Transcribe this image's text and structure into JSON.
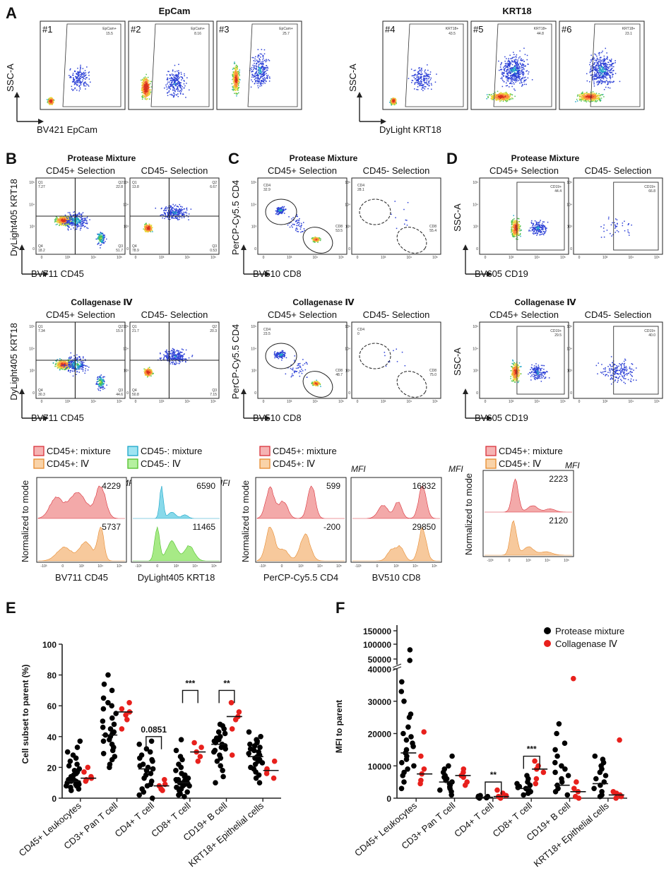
{
  "panels": {
    "A": {
      "label": "A",
      "groups": [
        {
          "title": "EpCam",
          "ylabel": "SSC-A",
          "xlabel": "BV421 EpCam",
          "plots": [
            {
              "id": "#1",
              "gate": "EpCam+",
              "pct": "15.5",
              "dist": "low"
            },
            {
              "id": "#2",
              "gate": "EpCam+",
              "pct": "8.16",
              "dist": "mid"
            },
            {
              "id": "#3",
              "gate": "EpCam+",
              "pct": "25.7",
              "dist": "band"
            }
          ]
        },
        {
          "title": "KRT18",
          "ylabel": "SSC-A",
          "xlabel": "DyLight KRT18",
          "plots": [
            {
              "id": "#4",
              "gate": "KRT18+",
              "pct": "43.5",
              "dist": "low"
            },
            {
              "id": "#5",
              "gate": "KRT18+",
              "pct": "44.8",
              "dist": "spread"
            },
            {
              "id": "#6",
              "gate": "KRT18+",
              "pct": "23.1",
              "dist": "spread"
            }
          ]
        }
      ]
    },
    "B": {
      "label": "B",
      "sections": [
        {
          "title": "Protease Mixture",
          "ylabel": "DyLight405 KRT18",
          "xlabel": "BV711 CD45",
          "plots": [
            {
              "sub": "CD45+ Selection",
              "q": [
                "Q1",
                "Q2",
                "Q3",
                "Q4"
              ],
              "v": [
                "7.27",
                "22.8",
                "51.7",
                "18.2"
              ]
            },
            {
              "sub": "CD45- Selection",
              "q": [
                "Q1",
                "Q2",
                "Q3",
                "Q4"
              ],
              "v": [
                "13.8",
                "6.67",
                "0.53",
                "78.9"
              ]
            }
          ]
        },
        {
          "title": "Collagenase Ⅳ",
          "ylabel": "DyLight405 KRT18",
          "xlabel": "BV711 CD45",
          "plots": [
            {
              "sub": "CD45+ Selection",
              "q": [
                "Q1",
                "Q2",
                "Q3",
                "Q4"
              ],
              "v": [
                "7.34",
                "15.9",
                "44.6",
                "30.3"
              ]
            },
            {
              "sub": "CD45- Selection",
              "q": [
                "Q1",
                "Q2",
                "Q3",
                "Q4"
              ],
              "v": [
                "21.7",
                "20.3",
                "7.15",
                "50.8"
              ]
            }
          ]
        }
      ],
      "legend": [
        "CD45+: mixture",
        "CD45-: mixture",
        "CD45+: Ⅳ",
        "CD45-: Ⅳ"
      ],
      "mfi_label": "MFI",
      "hist_ylabel": "Normalized to mode",
      "histograms": [
        {
          "xlabel": "BV711 CD45",
          "top": {
            "mfi": "4229",
            "color": "#f3a9a9"
          },
          "bottom": {
            "mfi": "5737",
            "color": "#f7c99c"
          }
        },
        {
          "xlabel": "DyLight405 KRT18",
          "top": {
            "mfi": "6590",
            "color": "#87d9ea"
          },
          "bottom": {
            "mfi": "11465",
            "color": "#a7ea86"
          }
        }
      ]
    },
    "C": {
      "label": "C",
      "sections": [
        {
          "title": "Protease Mixture",
          "ylabel": "PerCP-Cy5.5 CD4",
          "xlabel": "BV510 CD8",
          "plots": [
            {
              "sub": "CD45+ Selection",
              "cd4": "CD4",
              "cd4v": "32.9",
              "cd8": "CD8",
              "cd8v": "53.5"
            },
            {
              "sub": "CD45- Selection",
              "cd4": "CD4",
              "cd4v": "28.1",
              "cd8": "CD8",
              "cd8v": "55.4"
            }
          ]
        },
        {
          "title": "Collagenase Ⅳ",
          "ylabel": "PerCP-Cy5.5 CD4",
          "xlabel": "BV510 CD8",
          "plots": [
            {
              "sub": "CD45+ Selection",
              "cd4": "CD4",
              "cd4v": "23.5",
              "cd8": "CD8",
              "cd8v": "48.7"
            },
            {
              "sub": "CD45- Selection",
              "cd4": "CD4",
              "cd4v": "0",
              "cd8": "CD8",
              "cd8v": "75.0"
            }
          ]
        }
      ],
      "legend": [
        "CD45+: mixture",
        "CD45+: Ⅳ"
      ],
      "mfi_label": "MFI",
      "hist_ylabel": "Normalized to mode",
      "histograms": [
        {
          "xlabel": "PerCP-Cy5.5 CD4",
          "top": {
            "mfi": "599"
          },
          "bottom": {
            "mfi": "-200"
          }
        },
        {
          "xlabel": "BV510 CD8",
          "top": {
            "mfi": "16832"
          },
          "bottom": {
            "mfi": "29850"
          }
        }
      ]
    },
    "D": {
      "label": "D",
      "sections": [
        {
          "title": "Protease Mixture",
          "ylabel": "SSC-A",
          "xlabel": "BV605 CD19",
          "plots": [
            {
              "sub": "CD45+ Selection",
              "gate": "CD19+",
              "pct": "44.4"
            },
            {
              "sub": "CD45- Selection",
              "gate": "CD19+",
              "pct": "66.8"
            }
          ]
        },
        {
          "title": "Collagenase Ⅳ",
          "ylabel": "SSC-A",
          "xlabel": "BV605 CD19",
          "plots": [
            {
              "sub": "CD45+ Selection",
              "gate": "CD19+",
              "pct": "29.5"
            },
            {
              "sub": "CD45- Selection",
              "gate": "CD19+",
              "pct": "40.0"
            }
          ]
        }
      ],
      "legend": [
        "CD45+: mixture",
        "CD45+: Ⅳ"
      ],
      "mfi_label": "MFI",
      "hist_ylabel": "Normalized to mode",
      "histograms": [
        {
          "xlabel": "",
          "top": {
            "mfi": "2223"
          },
          "bottom": {
            "mfi": "2120"
          }
        }
      ]
    }
  },
  "chart_data": [
    {
      "panel": "E",
      "type": "scatter",
      "ylabel": "Cell subset to parent (%)",
      "ylim": [
        0,
        100
      ],
      "yticks": [
        0,
        20,
        40,
        60,
        80,
        100
      ],
      "categories": [
        "CD45+ Leukocytes",
        "CD3+ Pan T cell",
        "CD4+ T cell",
        "CD8+ T cell",
        "CD19+ B cell",
        "KRT18+ Epithelial cells"
      ],
      "series": [
        {
          "name": "Protease mixture",
          "color": "#000000",
          "medians": [
            11,
            41,
            19,
            10,
            35,
            27
          ],
          "values": [
            [
              5,
              6,
              7,
              8,
              8,
              9,
              9,
              10,
              10,
              11,
              11,
              12,
              12,
              13,
              14,
              15,
              16,
              17,
              18,
              19,
              21,
              22,
              24,
              26,
              28,
              30,
              33,
              37
            ],
            [
              20,
              22,
              25,
              27,
              29,
              31,
              33,
              35,
              37,
              38,
              40,
              41,
              42,
              43,
              45,
              46,
              48,
              50,
              52,
              55,
              58,
              60,
              62,
              65,
              70,
              74,
              80
            ],
            [
              0,
              2,
              4,
              6,
              8,
              9,
              11,
              13,
              15,
              16,
              18,
              19,
              20,
              21,
              22,
              24,
              25,
              26,
              28,
              30,
              32,
              35,
              37
            ],
            [
              1,
              2,
              3,
              4,
              5,
              5,
              6,
              6,
              7,
              8,
              8,
              9,
              9,
              10,
              10,
              11,
              12,
              12,
              13,
              14,
              15,
              16,
              18,
              20,
              22,
              25,
              27,
              31,
              38
            ],
            [
              10,
              14,
              18,
              21,
              24,
              26,
              28,
              30,
              31,
              32,
              33,
              34,
              35,
              36,
              37,
              38,
              39,
              40,
              42,
              43,
              45,
              47,
              48
            ],
            [
              10,
              13,
              15,
              17,
              19,
              20,
              22,
              23,
              24,
              25,
              26,
              27,
              28,
              29,
              30,
              31,
              32,
              33,
              34,
              35,
              36,
              37,
              38,
              40,
              43
            ]
          ]
        },
        {
          "name": "Collagenase Ⅳ",
          "color": "#e8201c",
          "medians": [
            13,
            56,
            8,
            30,
            53,
            18
          ],
          "values": [
            [
              11,
              12,
              13,
              14,
              17,
              20
            ],
            [
              45,
              51,
              54,
              56,
              58,
              62
            ],
            [
              5,
              6,
              8,
              9,
              12
            ],
            [
              24,
              27,
              30,
              33,
              36
            ],
            [
              28,
              45,
              51,
              53,
              56,
              62
            ],
            [
              13,
              16,
              18,
              19,
              24
            ]
          ]
        }
      ],
      "annotations": [
        {
          "label": "0.0851",
          "between": [
            2,
            2
          ],
          "y": 40
        },
        {
          "label": "***",
          "between": [
            3,
            3
          ],
          "y": 70
        },
        {
          "label": "**",
          "between": [
            4,
            4
          ],
          "y": 70
        }
      ]
    },
    {
      "panel": "F",
      "type": "scatter",
      "ylabel": "MFI to parent",
      "ylim": [
        0,
        40000
      ],
      "yticks": [
        0,
        10000,
        20000,
        30000,
        40000
      ],
      "yticks_upper": [
        50000,
        100000,
        150000
      ],
      "categories": [
        "CD45+ Leukocytes",
        "CD3+ Pan T cell",
        "CD4+ T cell",
        "CD8+ T cell",
        "CD19+ B cell",
        "KRT18+ Epithelial cells"
      ],
      "series": [
        {
          "name": "Protease mixture",
          "color": "#000000",
          "medians": [
            14000,
            5000,
            300,
            3000,
            4000,
            4500
          ],
          "values": [
            [
              3000,
              5000,
              7000,
              8000,
              9000,
              10000,
              11000,
              12000,
              13000,
              14000,
              15000,
              16000,
              17000,
              18000,
              19000,
              20000,
              22000,
              25000,
              26000,
              30000,
              33000,
              36000
            ],
            [
              1000,
              2000,
              2500,
              3000,
              3500,
              4000,
              4500,
              5000,
              5500,
              6000,
              6500,
              7000,
              8000,
              9000,
              10000,
              13000
            ],
            [
              0,
              100,
              200,
              300,
              400,
              500,
              600,
              800
            ],
            [
              1000,
              1500,
              2000,
              2500,
              3000,
              3300,
              3600,
              4000,
              4500,
              5000,
              6000,
              7000
            ],
            [
              1000,
              2000,
              3000,
              4000,
              5000,
              6000,
              7000,
              8000,
              9000,
              10000,
              11000,
              13000,
              15000,
              17000,
              20000,
              23000
            ],
            [
              500,
              1000,
              2000,
              3000,
              4000,
              5000,
              6000,
              7000,
              8000,
              9000,
              10000,
              11000,
              12000,
              13000
            ]
          ],
          "upper_values": [
            [
              60000,
              100000
            ],
            [],
            [],
            [],
            [],
            []
          ]
        },
        {
          "name": "Collagenase Ⅳ",
          "color": "#e8201c",
          "medians": [
            7500,
            7000,
            500,
            9000,
            2000,
            1000
          ],
          "values": [
            [
              4500,
              5500,
              7500,
              9000,
              13000,
              20500
            ],
            [
              4000,
              5000,
              6500,
              7000,
              8000,
              9000
            ],
            [
              0,
              200,
              500,
              800,
              1500,
              2500
            ],
            [
              4500,
              6000,
              8000,
              9000,
              10000,
              11500
            ],
            [
              0,
              500,
              2000,
              3000,
              5000,
              37000
            ],
            [
              0,
              500,
              1000,
              1500,
              2000,
              18000
            ]
          ],
          "upper_values": [
            [],
            [],
            [],
            [],
            [],
            []
          ]
        }
      ],
      "annotations": [
        {
          "label": "**",
          "between": [
            2,
            2
          ],
          "y": 5000
        },
        {
          "label": "***",
          "between": [
            3,
            3
          ],
          "y": 13000
        }
      ]
    }
  ]
}
